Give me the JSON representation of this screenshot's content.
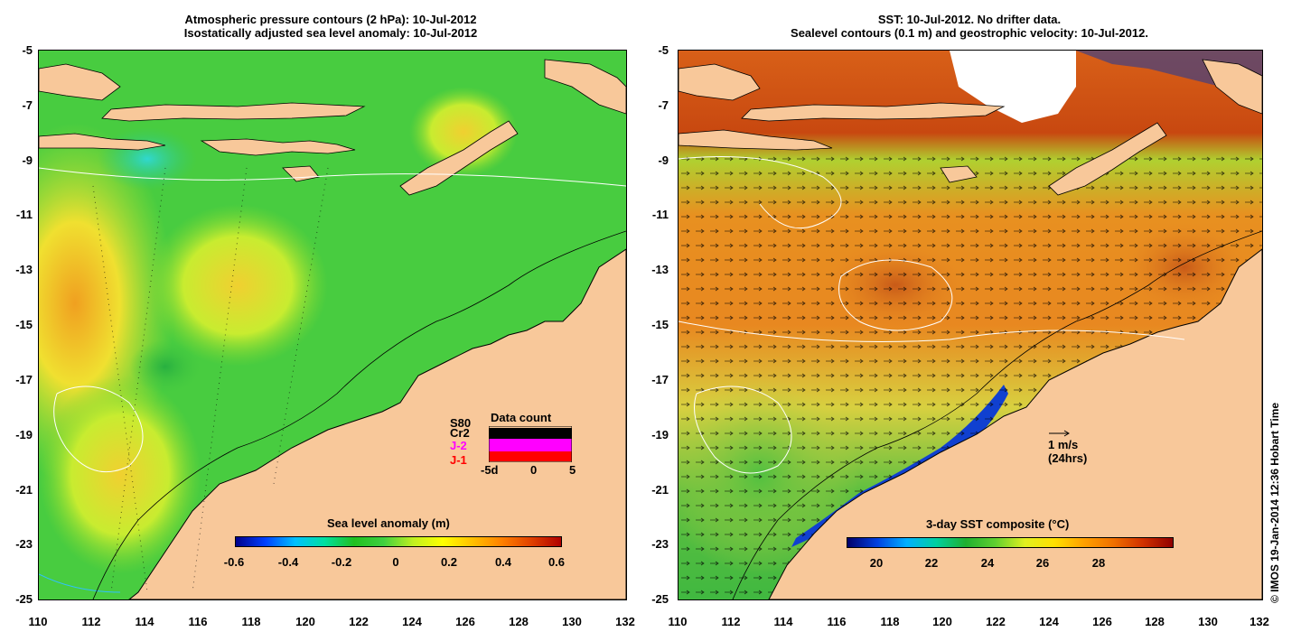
{
  "left": {
    "title_line1": "Atmospheric pressure contours (2 hPa): 10-Jul-2012",
    "title_line2": "Isostatically adjusted sea level anomaly: 10-Jul-2012",
    "colorbar_title": "Sea level anomaly (m)",
    "colorbar_ticks": [
      "-0.6",
      "-0.4",
      "-0.2",
      "0",
      "0.2",
      "0.4",
      "0.6"
    ],
    "data_count": {
      "title": "Data count",
      "series": [
        "S80",
        "Cr2",
        "J-2",
        "J-1"
      ],
      "series_colors": [
        "#000000",
        "#000000",
        "#ff00ff",
        "#ff0000"
      ],
      "axis_ticks": [
        "-5d",
        "0",
        "5"
      ]
    }
  },
  "right": {
    "title_line1": "SST: 10-Jul-2012. No drifter data.",
    "title_line2": "Sealevel contours (0.1 m) and geostrophic velocity: 10-Jul-2012.",
    "colorbar_title": "3-day SST composite (°C)",
    "colorbar_ticks": [
      "20",
      "22",
      "24",
      "26",
      "28"
    ],
    "velocity_scale_line1": "1 m/s",
    "velocity_scale_line2": "(24hrs)"
  },
  "axes": {
    "lon_ticks": [
      "110",
      "112",
      "114",
      "116",
      "118",
      "120",
      "122",
      "124",
      "126",
      "128",
      "130",
      "132"
    ],
    "lat_ticks": [
      "-5",
      "-7",
      "-9",
      "-11",
      "-13",
      "-15",
      "-17",
      "-19",
      "-21",
      "-23",
      "-25"
    ]
  },
  "credit": "© IMOS 19-Jan-2014 12:36 Hobart Time",
  "colors": {
    "land": "#f8c89a",
    "sla_ocean": "#40c840",
    "sst_warm": "#e88a20",
    "sst_hot": "#c04010",
    "sst_cool": "#40c040"
  }
}
